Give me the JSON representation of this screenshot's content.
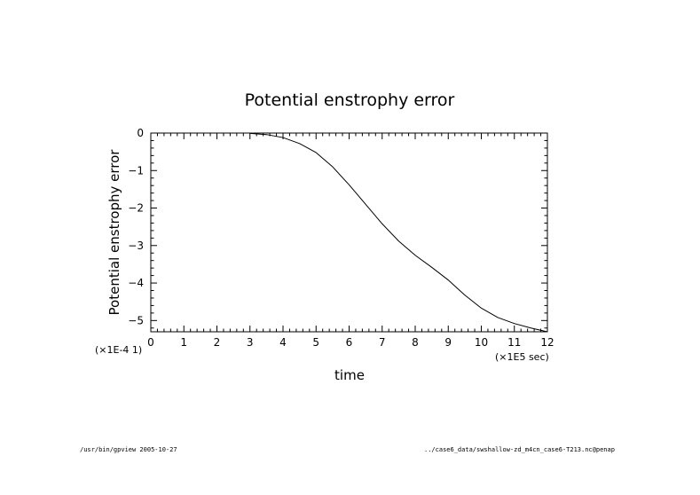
{
  "chart_data": {
    "type": "line",
    "title": "Potential enstrophy error",
    "xlabel": "time",
    "ylabel": "Potential enstrophy error",
    "x_scale_label": "(×1E5 sec)",
    "y_scale_label": "(×1E-4 1)",
    "xlim": [
      0,
      12
    ],
    "ylim": [
      -5.3,
      0
    ],
    "x_ticks": [
      "0",
      "1",
      "2",
      "3",
      "4",
      "5",
      "6",
      "7",
      "8",
      "9",
      "10",
      "11",
      "12"
    ],
    "y_ticks": [
      "0",
      "−1",
      "−2",
      "−3",
      "−4",
      "−5"
    ],
    "grid": false,
    "series": [
      {
        "x": [
          3.0,
          3.5,
          4.0,
          4.5,
          5.0,
          5.5,
          6.0,
          6.5,
          7.0,
          7.5,
          8.0,
          8.5,
          9.0,
          9.5,
          10.0,
          10.5,
          11.0,
          11.5,
          12.0
        ],
        "y": [
          -0.01,
          -0.04,
          -0.12,
          -0.28,
          -0.52,
          -0.9,
          -1.38,
          -1.9,
          -2.42,
          -2.88,
          -3.26,
          -3.58,
          -3.92,
          -4.32,
          -4.67,
          -4.92,
          -5.08,
          -5.2,
          -5.3
        ]
      }
    ]
  },
  "footer": {
    "left": "/usr/bin/gpview  2005-10-27",
    "right": "../case6_data/swshallow-zd_m4cn_case6-T213.nc@penap"
  }
}
